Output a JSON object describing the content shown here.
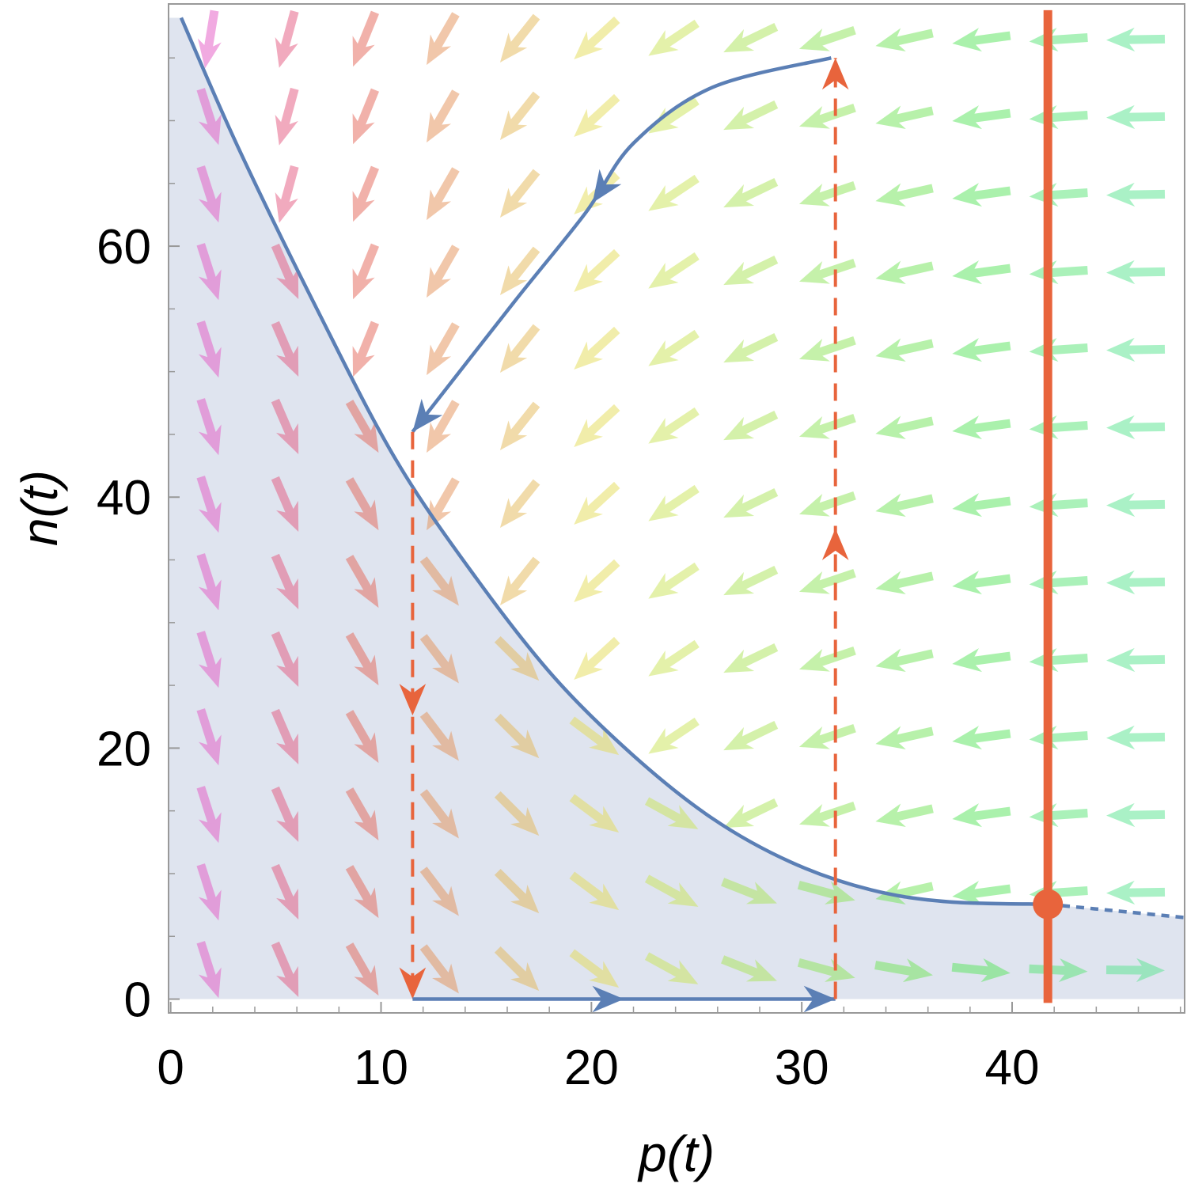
{
  "chart_data": {
    "type": "phase",
    "xlabel": "p(t)",
    "ylabel": "n(t)",
    "xlim": [
      -0.1,
      48.2
    ],
    "ylim": [
      -1.1,
      79.3
    ],
    "xticks": [
      0,
      10,
      20,
      30,
      40
    ],
    "yticks": [
      0,
      20,
      40,
      60
    ],
    "xminorticks": [
      2,
      4,
      6,
      8,
      12,
      14,
      16,
      18,
      22,
      24,
      26,
      28,
      32,
      34,
      36,
      38,
      42,
      44,
      46,
      48
    ],
    "yminorticks": [
      5,
      10,
      15,
      25,
      30,
      35,
      45,
      50,
      55,
      65,
      70,
      75
    ],
    "series": [
      {
        "color": "#5b7fb5",
        "style": "solid",
        "fill": "#dfe4ef",
        "x": [
          0.5,
          3.2,
          6.95,
          10.7,
          14.5,
          18.2,
          22,
          25.75,
          29.5,
          33.3,
          37,
          41.7
        ],
        "values": [
          78.2,
          67.9,
          55,
          43,
          33.6,
          25.7,
          19.4,
          14.4,
          10.9,
          8.7,
          7.75,
          7.56
        ]
      },
      {
        "color": "#5b7fb5",
        "style": "dashed",
        "fill": "#dfe4ef",
        "x": [
          41.7,
          44.5,
          48.2
        ],
        "values": [
          7.56,
          7.1,
          6.5
        ]
      },
      {
        "color": "#5b7fb5",
        "style": "solid",
        "arrows": true,
        "x": [
          31.4,
          25.75,
          22,
          19.7,
          16.35,
          11.5
        ],
        "values": [
          75,
          72.65,
          68.2,
          62.6,
          55.6,
          45.2
        ]
      },
      {
        "color": "#e8643c",
        "style": "dashed",
        "arrows": true,
        "x": [
          11.5,
          11.5
        ],
        "values": [
          45.2,
          0
        ]
      },
      {
        "color": "#5b7fb5",
        "style": "solid",
        "arrows": true,
        "x": [
          11.5,
          31.6
        ],
        "values": [
          0,
          0
        ]
      },
      {
        "color": "#e8643c",
        "style": "dashed",
        "arrows": true,
        "x": [
          31.6,
          31.6
        ],
        "values": [
          0,
          75
        ]
      },
      {
        "color": "#e8643c",
        "style": "thick",
        "x": [
          41.7,
          41.7
        ],
        "values": [
          -0.3,
          78.8
        ]
      },
      {
        "color": "#e8643c",
        "style": "point",
        "x": [
          41.7
        ],
        "values": [
          7.56
        ]
      }
    ]
  }
}
